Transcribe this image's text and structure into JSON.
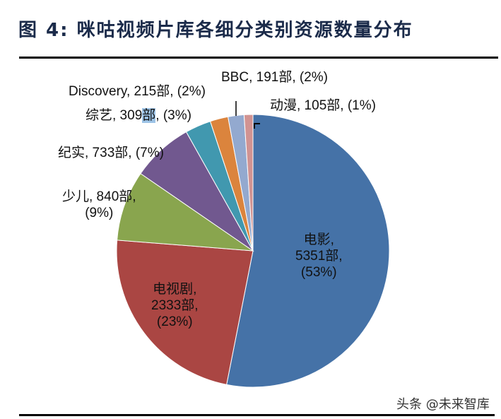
{
  "header": {
    "title": "图 4:  咪咕视频片库各细分类别资源数量分布"
  },
  "chart_data": {
    "type": "pie",
    "title": "图 4: 咪咕视频片库各细分类别资源数量分布",
    "unit": "部",
    "start_angle_deg": 0,
    "direction": "clockwise",
    "categories": [
      "电影",
      "电视剧",
      "少儿",
      "纪实",
      "综艺",
      "Discovery",
      "BBC",
      "动漫"
    ],
    "values": [
      5351,
      2333,
      840,
      733,
      309,
      215,
      191,
      105
    ],
    "percentages": [
      53,
      23,
      9,
      7,
      3,
      2,
      2,
      1
    ],
    "colors": [
      "#4572a7",
      "#aa4643",
      "#89a54e",
      "#71588f",
      "#4198af",
      "#db843d",
      "#93a9cf",
      "#d19392"
    ],
    "legend": "none (data labels)"
  },
  "labels": {
    "movie": {
      "line1": "电影,",
      "line2": "5351部,",
      "line3": "(53%)"
    },
    "tv": {
      "line1": "电视剧,",
      "line2": "2333部,",
      "line3": "(23%)"
    },
    "kids": {
      "line1": "少儿, 840部,",
      "line2": "(9%)"
    },
    "documentary": {
      "text": "纪实, 733部, (7%)"
    },
    "variety": {
      "prefix": "综艺, 309",
      "unit": "部",
      "suffix": ", (3%)"
    },
    "discovery": {
      "text": "Discovery, 215部, (2%)"
    },
    "bbc": {
      "text": "BBC, 191部, (2%)"
    },
    "anime": {
      "text": "动漫, 105部, (1%)"
    }
  },
  "footer": {
    "watermark": "头条 @未来智库"
  }
}
